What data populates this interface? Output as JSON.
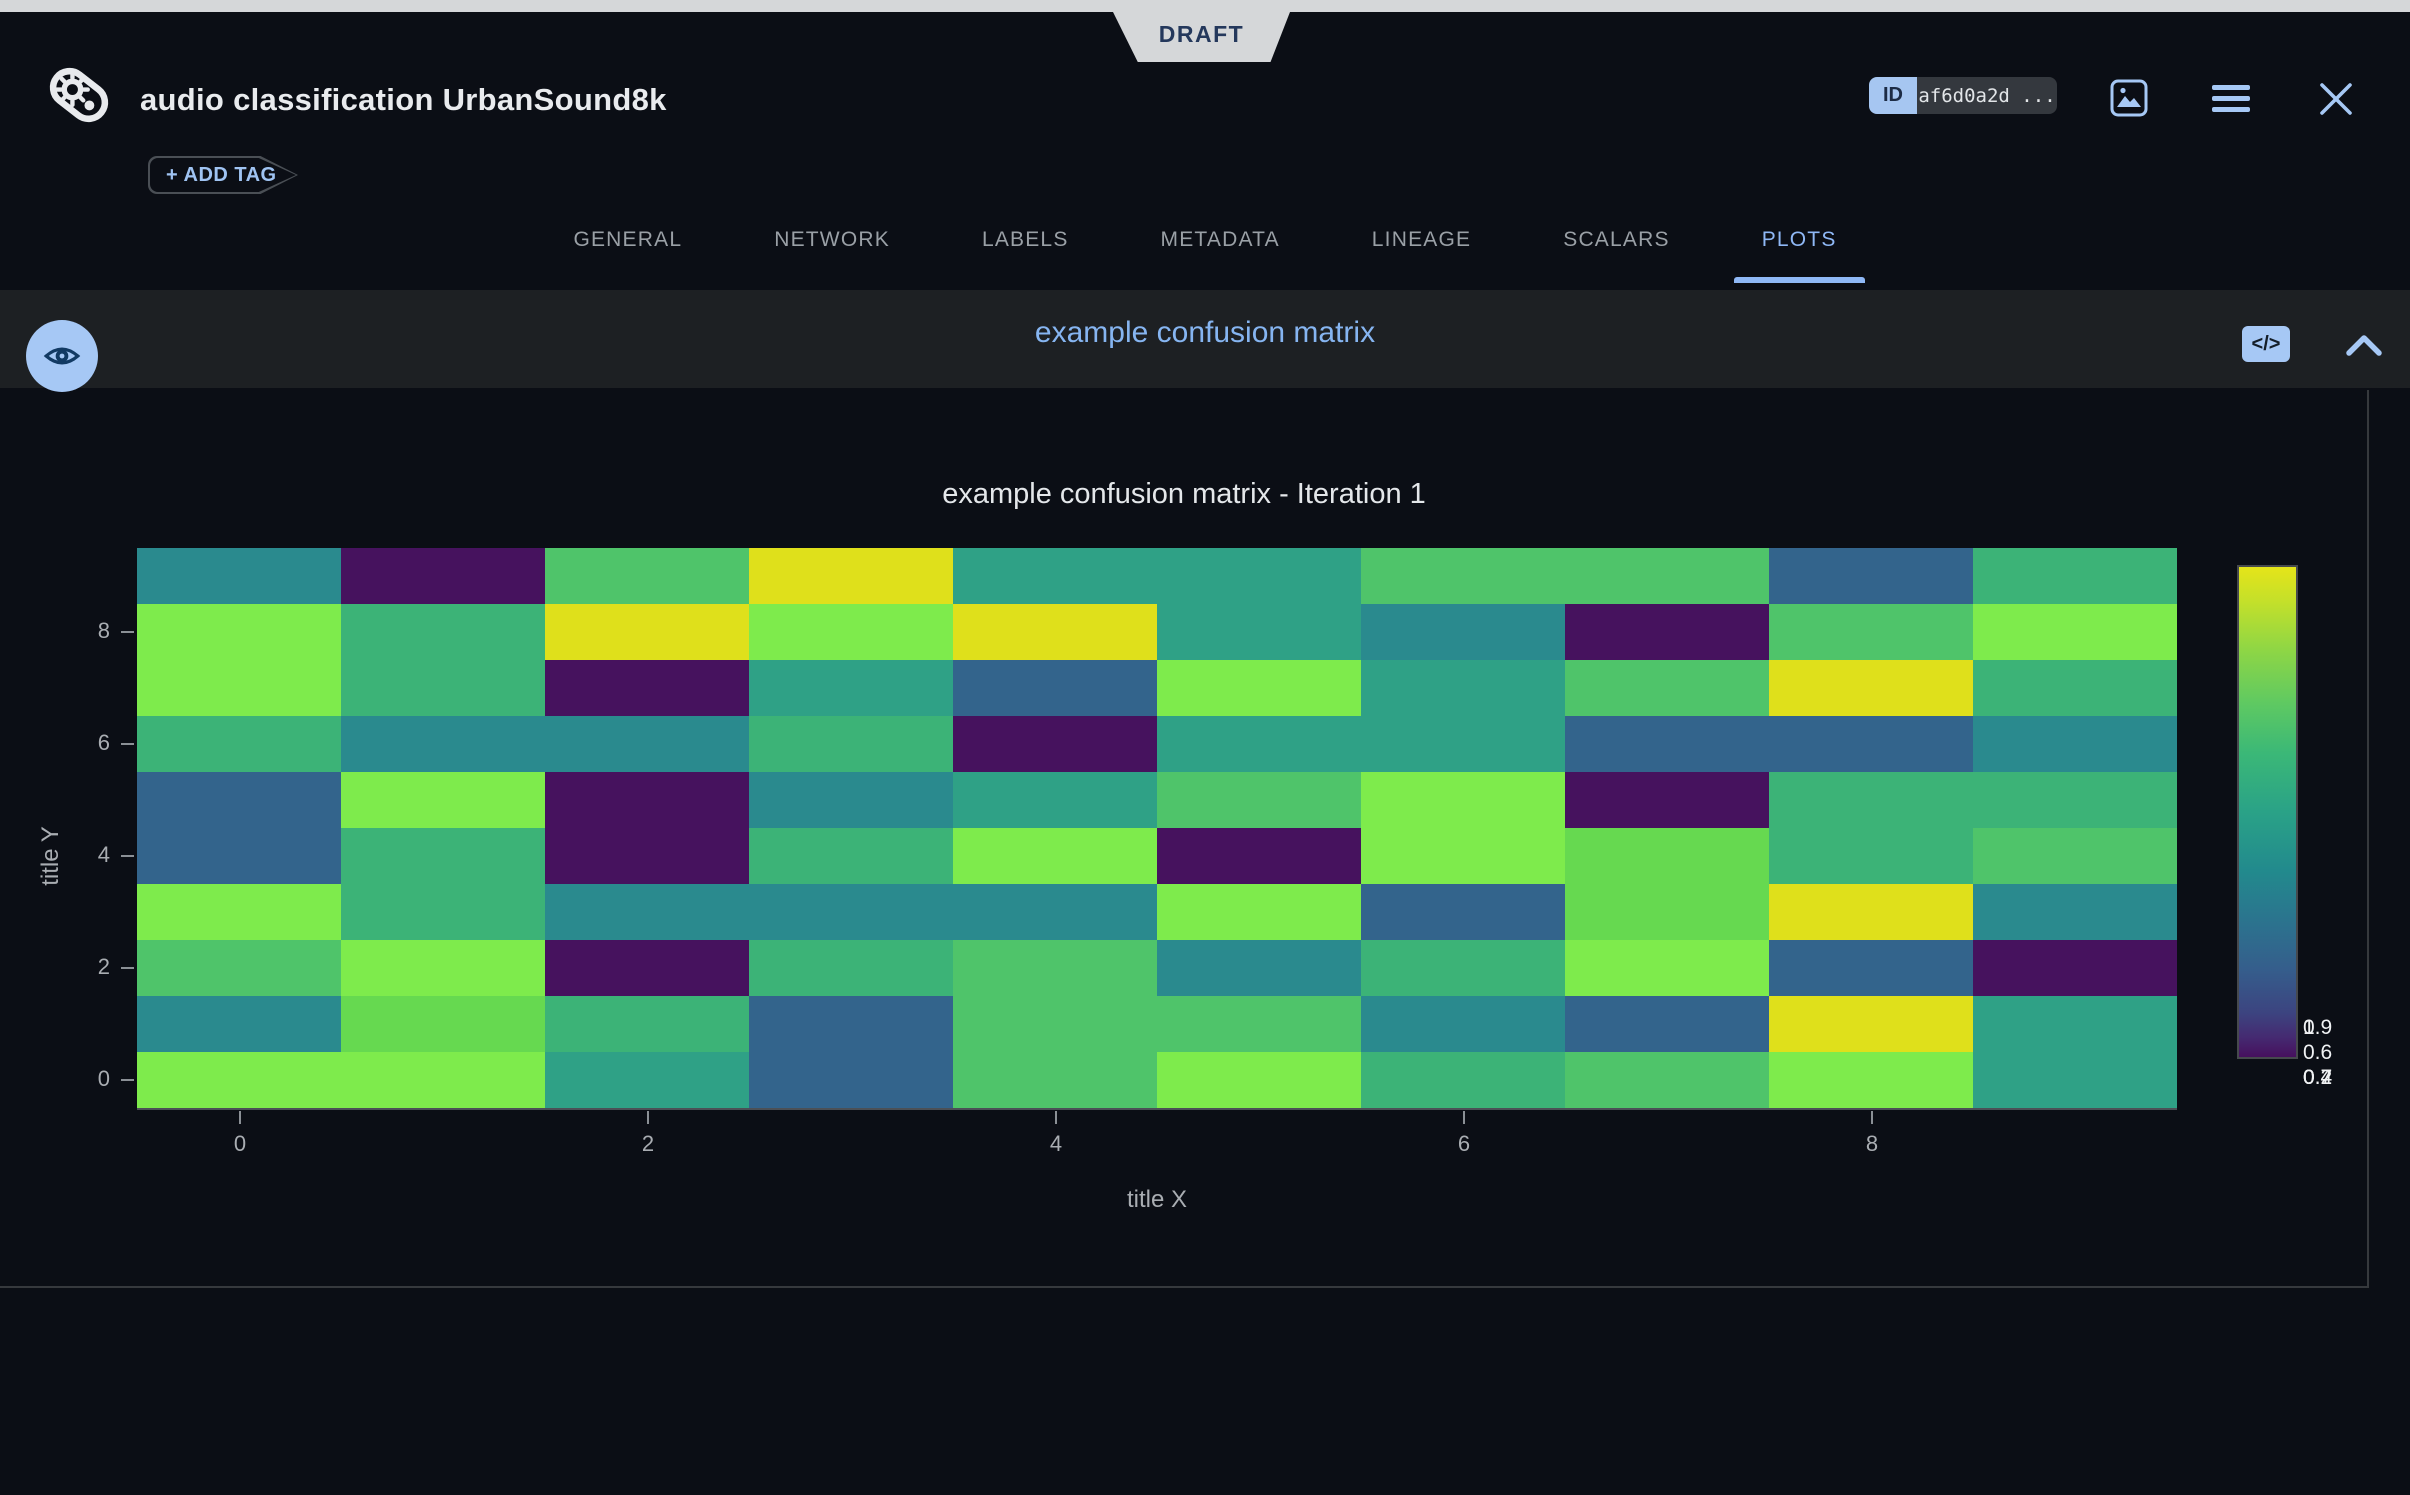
{
  "ribbon": {
    "status": "DRAFT"
  },
  "header": {
    "title": "audio classification UrbanSound8k",
    "add_tag_label": "+ ADD TAG",
    "id_label": "ID",
    "id_value": "af6d0a2d ..."
  },
  "tabs": {
    "items": [
      "GENERAL",
      "NETWORK",
      "LABELS",
      "METADATA",
      "LINEAGE",
      "SCALARS",
      "PLOTS"
    ],
    "active_index": 6
  },
  "panel": {
    "title": "example confusion matrix"
  },
  "theme": {
    "accent_blue": "#8fb8f6",
    "icon_blue": "#a6c8f5",
    "background": "#0b0e15",
    "panel_bar": "#1d2023",
    "ribbon_gray": "#d5d7d9"
  },
  "chart_data": {
    "type": "heatmap",
    "title": "example confusion matrix - Iteration 1",
    "xlabel": "title X",
    "ylabel": "title Y",
    "x_ticks": [
      0,
      2,
      4,
      6,
      8
    ],
    "y_ticks": [
      8,
      6,
      4,
      2,
      0
    ],
    "x_range": [
      -0.5,
      9.5
    ],
    "y_range": [
      -0.5,
      9.5
    ],
    "grid": false,
    "colorscale": "Viridis",
    "legend_position": "right-colorbar",
    "colorbar_label_lines": [
      [
        "1",
        "0.9"
      ],
      [
        "0.6"
      ],
      [
        "0.2",
        "0.4",
        "0.7"
      ]
    ],
    "rows_top_to_bottom": [
      9,
      8,
      7,
      6,
      5,
      4,
      3,
      2,
      1,
      0
    ],
    "values": [
      [
        0.47,
        0.05,
        0.72,
        0.97,
        0.55,
        0.55,
        0.72,
        0.72,
        0.27,
        0.63
      ],
      [
        0.84,
        0.63,
        0.97,
        0.84,
        0.97,
        0.55,
        0.47,
        0.05,
        0.72,
        0.84
      ],
      [
        0.84,
        0.63,
        0.05,
        0.55,
        0.27,
        0.84,
        0.55,
        0.72,
        0.97,
        0.63
      ],
      [
        0.63,
        0.47,
        0.47,
        0.63,
        0.05,
        0.55,
        0.55,
        0.27,
        0.27,
        0.47
      ],
      [
        0.27,
        0.84,
        0.05,
        0.47,
        0.55,
        0.72,
        0.84,
        0.05,
        0.63,
        0.63
      ],
      [
        0.27,
        0.63,
        0.05,
        0.63,
        0.84,
        0.05,
        0.84,
        0.78,
        0.63,
        0.72
      ],
      [
        0.84,
        0.63,
        0.47,
        0.47,
        0.47,
        0.84,
        0.27,
        0.78,
        0.97,
        0.47
      ],
      [
        0.72,
        0.84,
        0.05,
        0.63,
        0.72,
        0.47,
        0.63,
        0.84,
        0.27,
        0.05
      ],
      [
        0.47,
        0.78,
        0.63,
        0.27,
        0.72,
        0.72,
        0.47,
        0.27,
        0.97,
        0.55
      ],
      [
        0.84,
        0.84,
        0.55,
        0.27,
        0.72,
        0.84,
        0.63,
        0.72,
        0.84,
        0.55
      ]
    ],
    "palette": {
      "0.05": "#46125e",
      "0.27": "#33648c",
      "0.47": "#2a8a8e",
      "0.55": "#2fa186",
      "0.63": "#3cb377",
      "0.72": "#4fc46a",
      "0.78": "#66d950",
      "0.84": "#7eeb4c",
      "0.97": "#dfe01b"
    }
  }
}
